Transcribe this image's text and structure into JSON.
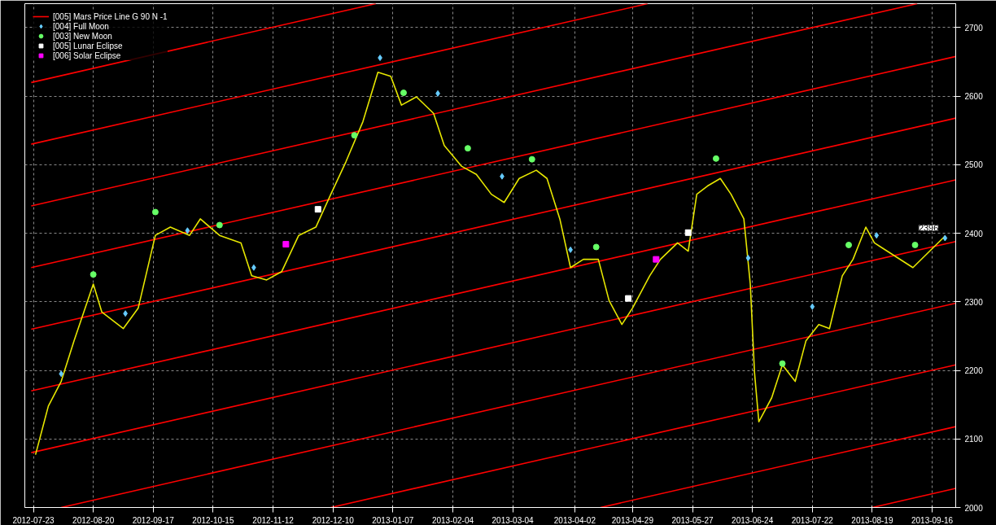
{
  "chart_data": {
    "type": "line",
    "xlim": [
      "2012-07-19",
      "2013-09-27"
    ],
    "ylim": [
      2000,
      2735
    ],
    "xticks": [
      "2012-07-23",
      "2012-08-20",
      "2012-09-17",
      "2012-10-15",
      "2012-11-12",
      "2012-12-10",
      "2013-01-07",
      "2013-02-04",
      "2013-03-04",
      "2013-04-02",
      "2013-04-29",
      "2013-05-27",
      "2013-06-24",
      "2013-07-22",
      "2013-08-19",
      "2013-09-16"
    ],
    "yticks": [
      2000,
      2100,
      2200,
      2300,
      2400,
      2500,
      2600,
      2700
    ],
    "grid": true,
    "legend": "top left",
    "annotations": [
      {
        "text": "2396",
        "x": "2013-09-22",
        "y": 2396
      }
    ],
    "series": [
      {
        "name": "[005] Mars Price Line G 90 N -1",
        "color": "#ff0000",
        "x": [
          "2012-07-22",
          "2013-09-27"
        ],
        "values": [
          2350,
          2658
        ]
      },
      {
        "color": "#ff0000",
        "x": [
          "2012-07-22",
          "2013-09-09"
        ],
        "values": [
          2440,
          2735
        ]
      },
      {
        "color": "#ff0000",
        "x": [
          "2012-07-22",
          "2013-05-06"
        ],
        "values": [
          2530,
          2735
        ]
      },
      {
        "color": "#ff0000",
        "x": [
          "2012-07-22",
          "2012-12-30"
        ],
        "values": [
          2620,
          2735
        ]
      },
      {
        "color": "#ff0000",
        "x": [
          "2012-07-22",
          "2013-09-27"
        ],
        "values": [
          2260,
          2568
        ]
      },
      {
        "color": "#ff0000",
        "x": [
          "2012-07-22",
          "2013-09-27"
        ],
        "values": [
          2170,
          2478
        ]
      },
      {
        "color": "#ff0000",
        "x": [
          "2012-07-22",
          "2013-09-27"
        ],
        "values": [
          2080,
          2388
        ]
      },
      {
        "color": "#ff0000",
        "x": [
          "2012-08-05",
          "2013-09-27"
        ],
        "values": [
          2000,
          2298
        ]
      },
      {
        "color": "#ff0000",
        "x": [
          "2012-12-09",
          "2013-09-27"
        ],
        "values": [
          2000,
          2208
        ]
      },
      {
        "color": "#ff0000",
        "x": [
          "2013-04-14",
          "2013-09-27"
        ],
        "values": [
          2000,
          2118
        ]
      },
      {
        "color": "#ff0000",
        "x": [
          "2013-08-19",
          "2013-09-27"
        ],
        "values": [
          2000,
          2028
        ]
      },
      {
        "color": "#e6e600",
        "x": [
          "2012-07-24",
          "2012-07-30",
          "2012-08-05",
          "2012-08-11",
          "2012-08-20",
          "2012-08-24",
          "2012-09-03",
          "2012-09-10",
          "2012-09-18",
          "2012-09-25",
          "2012-10-04",
          "2012-10-09",
          "2012-10-18",
          "2012-10-28",
          "2012-11-02",
          "2012-11-09",
          "2012-11-16",
          "2012-11-24",
          "2012-12-02",
          "2012-12-09",
          "2012-12-16",
          "2012-12-24",
          "2012-12-31",
          "2013-01-06",
          "2013-01-11",
          "2013-01-18",
          "2013-01-26",
          "2013-01-31",
          "2013-02-08",
          "2013-02-15",
          "2013-02-22",
          "2013-02-28",
          "2013-03-07",
          "2013-03-15",
          "2013-03-20",
          "2013-03-26",
          "2013-03-31",
          "2013-04-06",
          "2013-04-13",
          "2013-04-18",
          "2013-04-24",
          "2013-04-29",
          "2013-05-07",
          "2013-05-12",
          "2013-05-20",
          "2013-05-25",
          "2013-05-29",
          "2013-06-03",
          "2013-06-09",
          "2013-06-14",
          "2013-06-20",
          "2013-06-23",
          "2013-06-25",
          "2013-06-27",
          "2013-07-03",
          "2013-07-08",
          "2013-07-14",
          "2013-07-19",
          "2013-07-25",
          "2013-07-30",
          "2013-08-05",
          "2013-08-10",
          "2013-08-16",
          "2013-08-20",
          "2013-08-23",
          "2013-09-07",
          "2013-09-22"
        ],
        "values": [
          2077,
          2148,
          2184,
          2243,
          2326,
          2285,
          2261,
          2291,
          2397,
          2409,
          2397,
          2421,
          2397,
          2386,
          2338,
          2332,
          2344,
          2397,
          2409,
          2457,
          2504,
          2563,
          2635,
          2629,
          2587,
          2599,
          2575,
          2528,
          2498,
          2486,
          2457,
          2445,
          2480,
          2492,
          2480,
          2421,
          2350,
          2362,
          2362,
          2302,
          2267,
          2291,
          2338,
          2362,
          2386,
          2374,
          2457,
          2469,
          2480,
          2457,
          2421,
          2326,
          2196,
          2125,
          2160,
          2208,
          2184,
          2243,
          2267,
          2261,
          2338,
          2362,
          2409,
          2386,
          2380,
          2350,
          2396
        ]
      },
      {
        "name": "[004] Full Moon",
        "type": "scatter",
        "marker": "diamond",
        "color": "#66ccff",
        "x": [
          "2012-08-05",
          "2012-09-04",
          "2012-10-03",
          "2012-11-03",
          "2013-01-01",
          "2013-01-28",
          "2013-02-27",
          "2013-03-31",
          "2013-06-22",
          "2013-07-22",
          "2013-08-21",
          "2013-09-22"
        ],
        "values": [
          2195,
          2283,
          2404,
          2350,
          2656,
          2604,
          2483,
          2376,
          2364,
          2293,
          2397,
          2393
        ]
      },
      {
        "name": "[003] New Moon",
        "type": "scatter",
        "marker": "circle",
        "color": "#66ff66",
        "x": [
          "2012-08-20",
          "2012-09-18",
          "2012-10-18",
          "2012-12-20",
          "2013-01-12",
          "2013-02-11",
          "2013-03-13",
          "2013-04-12",
          "2013-06-07",
          "2013-07-08",
          "2013-08-08",
          "2013-09-08"
        ],
        "values": [
          2340,
          2431,
          2412,
          2543,
          2605,
          2524,
          2508,
          2380,
          2509,
          2210,
          2383,
          2383
        ]
      },
      {
        "name": "[005] Lunar Eclipse",
        "type": "scatter",
        "marker": "square",
        "color": "#ffffff",
        "x": [
          "2012-12-03",
          "2013-04-27",
          "2013-05-25"
        ],
        "values": [
          2435,
          2305,
          2401
        ]
      },
      {
        "name": "[006] Solar Eclipse",
        "type": "scatter",
        "marker": "square",
        "color": "#ff00ff",
        "x": [
          "2012-11-18",
          "2013-05-10"
        ],
        "values": [
          2384,
          2362
        ]
      }
    ]
  }
}
